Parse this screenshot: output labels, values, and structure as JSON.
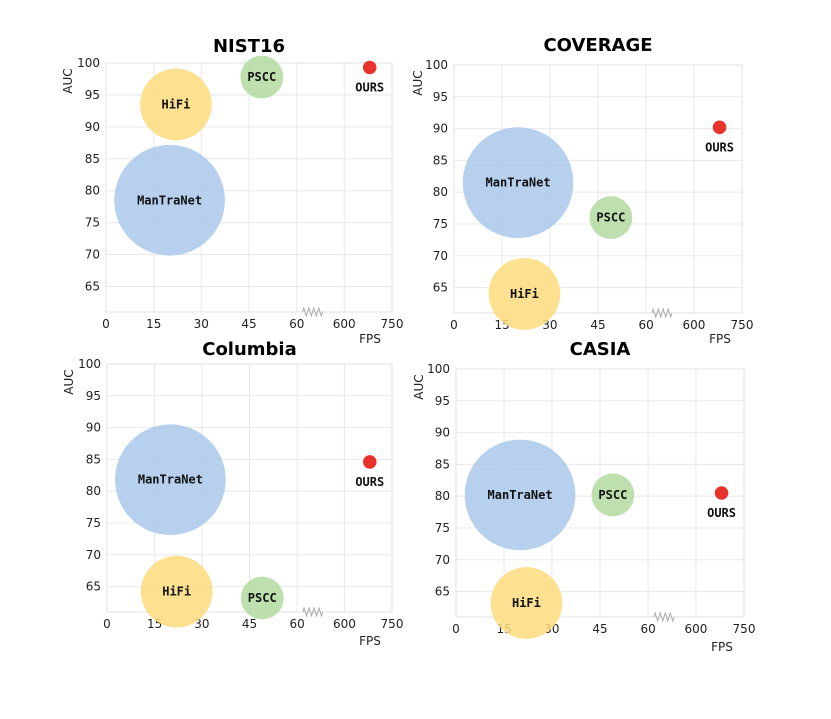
{
  "chart_data": [
    {
      "type": "scatter",
      "title": "NIST16",
      "xlabel": "FPS",
      "ylabel": "AUC",
      "xticks": [
        "0",
        "15",
        "30",
        "45",
        "60",
        "600",
        "750"
      ],
      "yticks": [
        65,
        70,
        75,
        80,
        85,
        90,
        95,
        100
      ],
      "ylim": [
        61,
        100
      ],
      "points": [
        {
          "name": "ManTraNet",
          "fps": 20,
          "auc": 78.5,
          "size": 10,
          "color": "#a9c8ea"
        },
        {
          "name": "HiFi",
          "fps": 22,
          "auc": 93.5,
          "size": 4.2,
          "color": "#fddc7e"
        },
        {
          "name": "PSCC",
          "fps": 49,
          "auc": 97.8,
          "size": 1.5,
          "color": "#b3dba0"
        },
        {
          "name": "OURS",
          "fps": 680,
          "auc": 99.3,
          "size": 0.15,
          "color": "#e8332c"
        }
      ]
    },
    {
      "type": "scatter",
      "title": "COVERAGE",
      "xlabel": "FPS",
      "ylabel": "AUC",
      "xticks": [
        "0",
        "15",
        "30",
        "45",
        "60",
        "600",
        "750"
      ],
      "yticks": [
        65,
        70,
        75,
        80,
        85,
        90,
        95,
        100
      ],
      "ylim": [
        61,
        100
      ],
      "points": [
        {
          "name": "ManTraNet",
          "fps": 20,
          "auc": 81.5,
          "size": 10,
          "color": "#a9c8ea"
        },
        {
          "name": "HiFi",
          "fps": 22,
          "auc": 64,
          "size": 4.2,
          "color": "#fddc7e"
        },
        {
          "name": "PSCC",
          "fps": 49,
          "auc": 76,
          "size": 1.5,
          "color": "#b3dba0"
        },
        {
          "name": "OURS",
          "fps": 680,
          "auc": 90.2,
          "size": 0.15,
          "color": "#e8332c"
        }
      ]
    },
    {
      "type": "scatter",
      "title": "Columbia",
      "xlabel": "FPS",
      "ylabel": "AUC",
      "xticks": [
        "0",
        "15",
        "30",
        "45",
        "60",
        "600",
        "750"
      ],
      "yticks": [
        65,
        70,
        75,
        80,
        85,
        90,
        95,
        100
      ],
      "ylim": [
        61,
        100
      ],
      "points": [
        {
          "name": "ManTraNet",
          "fps": 20,
          "auc": 81.8,
          "size": 10,
          "color": "#a9c8ea"
        },
        {
          "name": "HiFi",
          "fps": 22,
          "auc": 64.2,
          "size": 4.2,
          "color": "#fddc7e"
        },
        {
          "name": "PSCC",
          "fps": 49,
          "auc": 63.2,
          "size": 1.5,
          "color": "#b3dba0"
        },
        {
          "name": "OURS",
          "fps": 680,
          "auc": 84.6,
          "size": 0.15,
          "color": "#e8332c"
        }
      ]
    },
    {
      "type": "scatter",
      "title": "CASIA",
      "xlabel": "FPS",
      "ylabel": "AUC",
      "xticks": [
        "0",
        "15",
        "30",
        "45",
        "60",
        "600",
        "750"
      ],
      "yticks": [
        65,
        70,
        75,
        80,
        85,
        90,
        95,
        100
      ],
      "ylim": [
        61,
        100
      ],
      "points": [
        {
          "name": "ManTraNet",
          "fps": 20,
          "auc": 80.2,
          "size": 10,
          "color": "#a9c8ea"
        },
        {
          "name": "HiFi",
          "fps": 22,
          "auc": 63.2,
          "size": 4.2,
          "color": "#fddc7e"
        },
        {
          "name": "PSCC",
          "fps": 49,
          "auc": 80.2,
          "size": 1.5,
          "color": "#b3dba0"
        },
        {
          "name": "OURS",
          "fps": 680,
          "auc": 80.5,
          "size": 0.15,
          "color": "#e8332c"
        }
      ]
    }
  ]
}
